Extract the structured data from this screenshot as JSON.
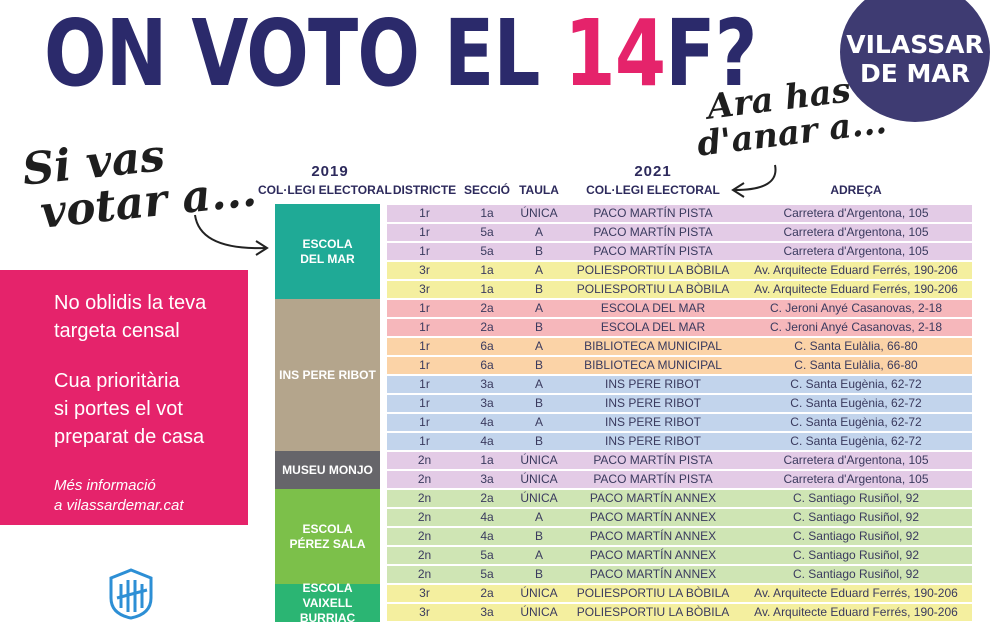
{
  "header": {
    "title_part1": "ON VOTO EL ",
    "title_highlight": "14",
    "title_part2": "F?",
    "badge_line1": "VILASSAR",
    "badge_line2": "DE MAR"
  },
  "handwriting": {
    "left_line1": "Si vas",
    "left_line2": "votar a...",
    "right_line1": "Ara has",
    "right_line2": "d'anar a..."
  },
  "info": {
    "line1": "No oblidis la teva",
    "line2": "targeta censal",
    "line3": "Cua prioritària",
    "line4": "si portes el vot",
    "line5": "preparat de casa",
    "more1": "Més informació",
    "more2": "a vilassardemar.cat"
  },
  "table": {
    "year_2019": "2019",
    "year_2021": "2021",
    "headers": {
      "college_2019": "COL·LEGI ELECTORAL",
      "district": "DISTRICTE",
      "section": "SECCIÓ",
      "table": "TAULA",
      "college_2021": "COL·LEGI ELECTORAL",
      "address": "ADREÇA"
    },
    "schools": [
      {
        "name": "ESCOLA\nDEL MAR",
        "color": "#1faa96"
      },
      {
        "name": "INS PERE RIBOT",
        "color": "#b4a58c"
      },
      {
        "name": "MUSEU MONJO",
        "color": "#66656a"
      },
      {
        "name": "ESCOLA\nPÉREZ SALA",
        "color": "#7cc04a"
      },
      {
        "name": "ESCOLA\nVAIXELL\nBURRIAC",
        "color": "#2bb573"
      }
    ],
    "rows": [
      {
        "d": "1r",
        "s": "1a",
        "t": "ÚNICA",
        "c": "PACO MARTÍN PISTA",
        "a": "Carretera d'Argentona, 105",
        "bg": "#e3cbe6"
      },
      {
        "d": "1r",
        "s": "5a",
        "t": "A",
        "c": "PACO MARTÍN PISTA",
        "a": "Carretera d'Argentona, 105",
        "bg": "#e3cbe6"
      },
      {
        "d": "1r",
        "s": "5a",
        "t": "B",
        "c": "PACO MARTÍN PISTA",
        "a": "Carretera d'Argentona, 105",
        "bg": "#e3cbe6"
      },
      {
        "d": "3r",
        "s": "1a",
        "t": "A",
        "c": "POLIESPORTIU LA BÒBILA",
        "a": "Av. Arquitecte Eduard Ferrés, 190-206",
        "bg": "#f4ef9f"
      },
      {
        "d": "3r",
        "s": "1a",
        "t": "B",
        "c": "POLIESPORTIU LA BÒBILA",
        "a": "Av. Arquitecte Eduard Ferrés, 190-206",
        "bg": "#f4ef9f"
      },
      {
        "d": "1r",
        "s": "2a",
        "t": "A",
        "c": "ESCOLA DEL MAR",
        "a": "C. Jeroni Anyé Casanovas, 2-18",
        "bg": "#f6b7bb"
      },
      {
        "d": "1r",
        "s": "2a",
        "t": "B",
        "c": "ESCOLA DEL MAR",
        "a": "C. Jeroni Anyé Casanovas, 2-18",
        "bg": "#f6b7bb"
      },
      {
        "d": "1r",
        "s": "6a",
        "t": "A",
        "c": "BIBLIOTECA MUNICIPAL",
        "a": "C. Santa Eulàlia, 66-80",
        "bg": "#fbd3a7"
      },
      {
        "d": "1r",
        "s": "6a",
        "t": "B",
        "c": "BIBLIOTECA MUNICIPAL",
        "a": "C. Santa Eulàlia, 66-80",
        "bg": "#fbd3a7"
      },
      {
        "d": "1r",
        "s": "3a",
        "t": "A",
        "c": "INS PERE RIBOT",
        "a": "C. Santa Eugènia, 62-72",
        "bg": "#c2d4ec"
      },
      {
        "d": "1r",
        "s": "3a",
        "t": "B",
        "c": "INS PERE RIBOT",
        "a": "C. Santa Eugènia, 62-72",
        "bg": "#c2d4ec"
      },
      {
        "d": "1r",
        "s": "4a",
        "t": "A",
        "c": "INS PERE RIBOT",
        "a": "C. Santa Eugènia, 62-72",
        "bg": "#c2d4ec"
      },
      {
        "d": "1r",
        "s": "4a",
        "t": "B",
        "c": "INS PERE RIBOT",
        "a": "C. Santa Eugènia, 62-72",
        "bg": "#c2d4ec"
      },
      {
        "d": "2n",
        "s": "1a",
        "t": "ÚNICA",
        "c": "PACO MARTÍN PISTA",
        "a": "Carretera d'Argentona, 105",
        "bg": "#e3cbe6"
      },
      {
        "d": "2n",
        "s": "3a",
        "t": "ÚNICA",
        "c": "PACO MARTÍN PISTA",
        "a": "Carretera d'Argentona, 105",
        "bg": "#e3cbe6"
      },
      {
        "d": "2n",
        "s": "2a",
        "t": "ÚNICA",
        "c": "PACO MARTÍN ANNEX",
        "a": "C. Santiago Rusiñol, 92",
        "bg": "#cfe5b4"
      },
      {
        "d": "2n",
        "s": "4a",
        "t": "A",
        "c": "PACO MARTÍN ANNEX",
        "a": "C. Santiago Rusiñol, 92",
        "bg": "#cfe5b4"
      },
      {
        "d": "2n",
        "s": "4a",
        "t": "B",
        "c": "PACO MARTÍN ANNEX",
        "a": "C. Santiago Rusiñol, 92",
        "bg": "#cfe5b4"
      },
      {
        "d": "2n",
        "s": "5a",
        "t": "A",
        "c": "PACO MARTÍN ANNEX",
        "a": "C. Santiago Rusiñol, 92",
        "bg": "#cfe5b4"
      },
      {
        "d": "2n",
        "s": "5a",
        "t": "B",
        "c": "PACO MARTÍN ANNEX",
        "a": "C. Santiago Rusiñol, 92",
        "bg": "#cfe5b4"
      },
      {
        "d": "3r",
        "s": "2a",
        "t": "ÚNICA",
        "c": "POLIESPORTIU LA BÒBILA",
        "a": "Av. Arquitecte Eduard Ferrés, 190-206",
        "bg": "#f4ef9f"
      },
      {
        "d": "3r",
        "s": "3a",
        "t": "ÚNICA",
        "c": "POLIESPORTIU LA BÒBILA",
        "a": "Av. Arquitecte Eduard Ferrés, 190-206",
        "bg": "#f4ef9f"
      }
    ]
  }
}
